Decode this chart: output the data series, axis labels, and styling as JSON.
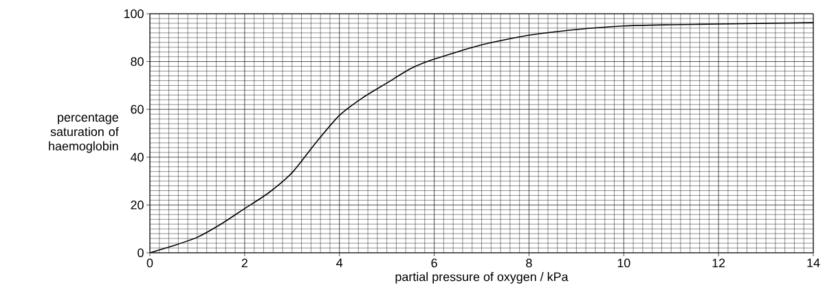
{
  "chart_data": {
    "type": "line",
    "xlabel": "partial pressure of oxygen / kPa",
    "ylabel": "percentage saturation of haemoglobin",
    "x": [
      0,
      0.5,
      1,
      1.5,
      2,
      2.5,
      3,
      3.5,
      4,
      4.5,
      5,
      5.5,
      6,
      7,
      8,
      9,
      10,
      11,
      12,
      13,
      14
    ],
    "values": [
      0,
      3,
      6.5,
      12,
      18.5,
      25,
      33.5,
      46,
      57.5,
      65,
      71,
      77,
      81,
      87,
      91,
      93.4,
      94.9,
      95.4,
      95.7,
      96,
      96.3
    ],
    "color": "#000000",
    "xlim": [
      0,
      14
    ],
    "ylim": [
      0,
      100
    ],
    "xticks": [
      0,
      2,
      4,
      6,
      8,
      10,
      12,
      14
    ],
    "yticks": [
      0,
      20,
      40,
      60,
      80,
      100
    ],
    "grid": true
  }
}
